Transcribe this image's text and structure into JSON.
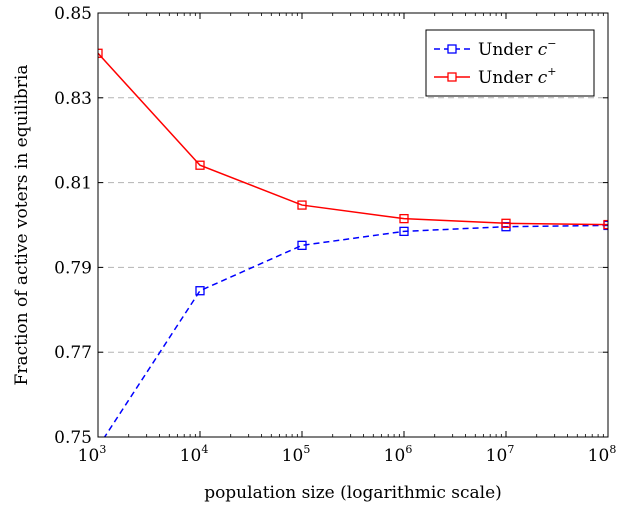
{
  "chart_data": {
    "type": "line",
    "xscale": "log",
    "x": [
      1000,
      10000,
      100000,
      1000000,
      10000000,
      100000000
    ],
    "xlim": [
      1000,
      100000000
    ],
    "ylim": [
      0.75,
      0.85
    ],
    "xticks": [
      {
        "base": "10",
        "exp": "3"
      },
      {
        "base": "10",
        "exp": "4"
      },
      {
        "base": "10",
        "exp": "5"
      },
      {
        "base": "10",
        "exp": "6"
      },
      {
        "base": "10",
        "exp": "7"
      },
      {
        "base": "10",
        "exp": "8"
      }
    ],
    "yticks": [
      {
        "value": 0.75,
        "label": "0.75"
      },
      {
        "value": 0.77,
        "label": "0.77"
      },
      {
        "value": 0.79,
        "label": "0.79"
      },
      {
        "value": 0.81,
        "label": "0.81"
      },
      {
        "value": 0.83,
        "label": "0.83"
      },
      {
        "value": 0.85,
        "label": "0.85"
      }
    ],
    "xlabel": "population size (logarithmic scale)",
    "ylabel": "Fraction of active voters in equilibria",
    "grid": "horizontal dashed",
    "legend_position": "top-right",
    "series": [
      {
        "key": "c_minus",
        "name_text": "Under",
        "name_var": "c",
        "name_sup": "−",
        "color": "#0000ff",
        "dash": "dashed",
        "marker": "square",
        "values": [
          0.7476,
          0.7845,
          0.7952,
          0.7985,
          0.7996,
          0.7999
        ]
      },
      {
        "key": "c_plus",
        "name_text": "Under",
        "name_var": "c",
        "name_sup": "+",
        "color": "#ff0000",
        "dash": "solid",
        "marker": "square",
        "values": [
          0.8405,
          0.8141,
          0.8047,
          0.8015,
          0.8004,
          0.8001
        ]
      }
    ]
  }
}
